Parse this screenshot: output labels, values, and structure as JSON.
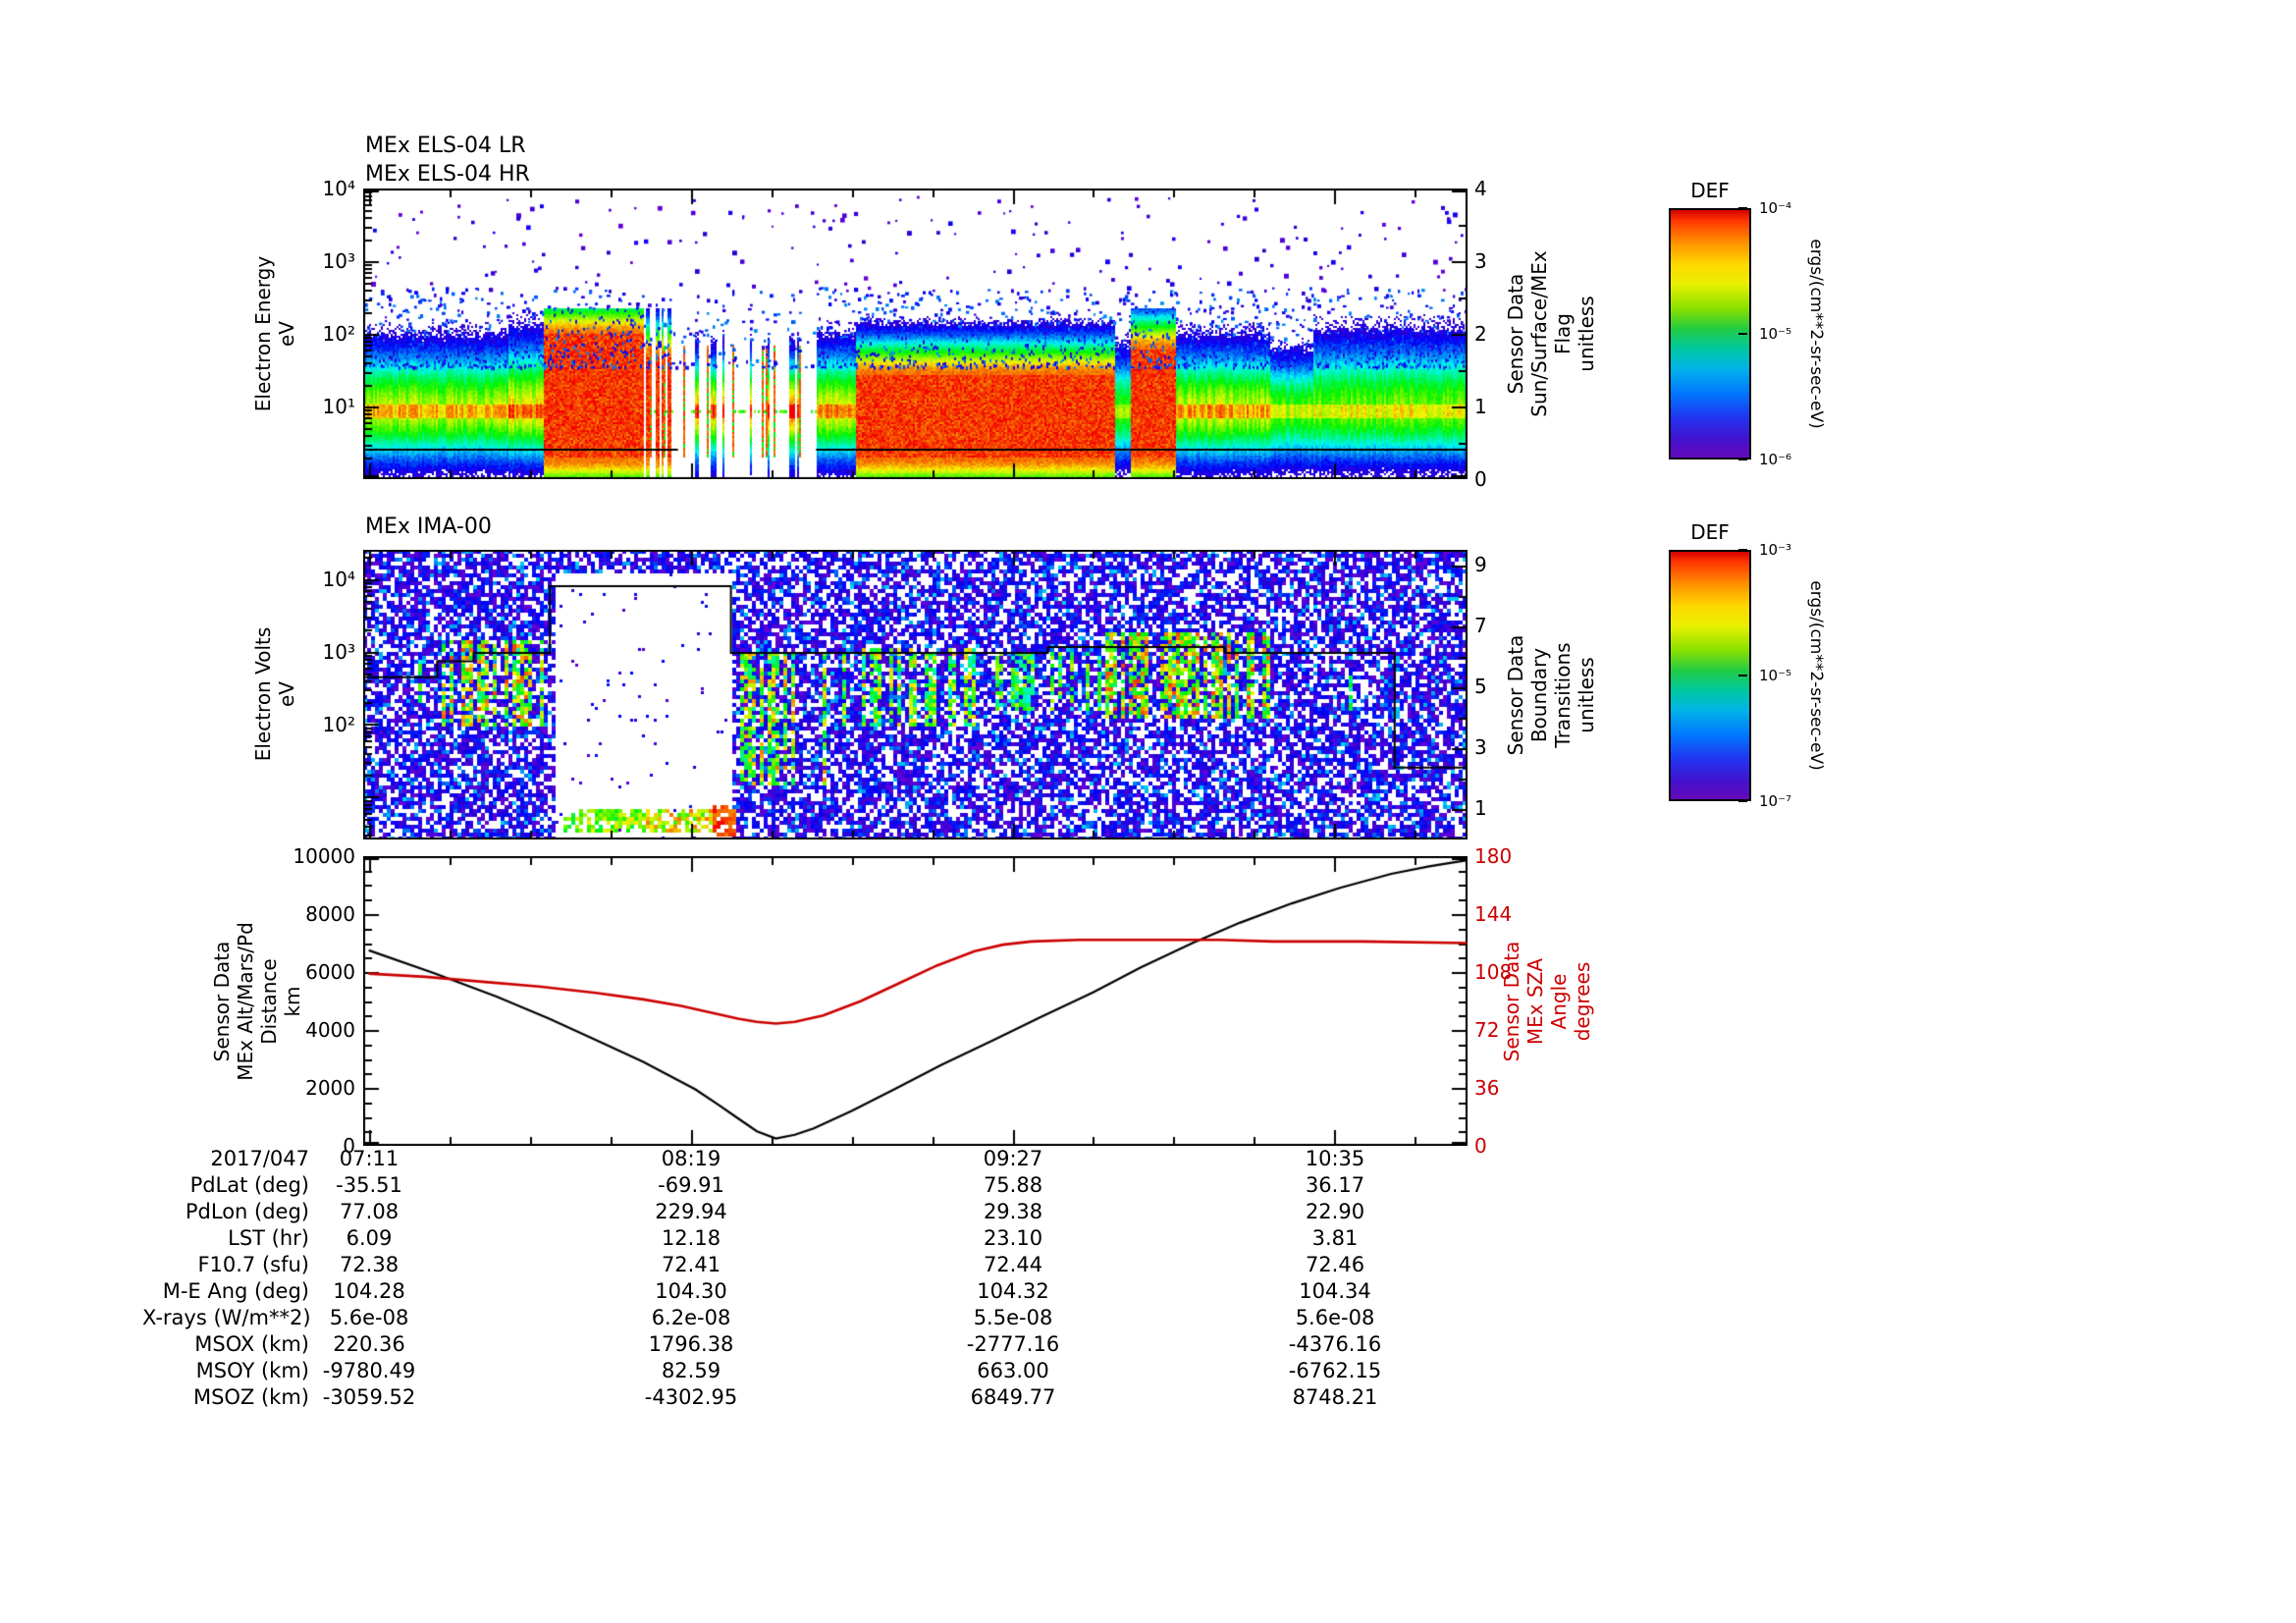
{
  "figure": {
    "date_label": "2017/047",
    "time_ticks": [
      "07:11",
      "08:19",
      "09:27",
      "10:35"
    ]
  },
  "els_panel": {
    "title_lr": "MEx ELS-04 LR",
    "title_hr": "MEx ELS-04 HR",
    "ylabel_lines": [
      "Electron Energy",
      "eV"
    ],
    "ytick_labels": [
      "10⁴",
      "10³",
      "10²",
      "10¹"
    ],
    "right_axis_label_lines": [
      "Sensor Data",
      "Sun/Surface/MEx",
      "Flag",
      "unitless"
    ],
    "right_tick_labels": [
      "4",
      "3",
      "2",
      "1",
      "0"
    ],
    "colorbar": {
      "title": "DEF",
      "tick_labels": [
        "10⁻⁴",
        "10⁻⁵",
        "10⁻⁶"
      ],
      "unit_label": "ergs/(cm**2-sr-sec-eV)"
    }
  },
  "ima_panel": {
    "title": "MEx IMA-00",
    "ylabel_lines": [
      "Electron Volts",
      "eV"
    ],
    "ytick_labels": [
      "10⁴",
      "10³",
      "10²"
    ],
    "right_axis_label_lines": [
      "Sensor Data",
      "Boundary",
      "Transitions",
      "unitless"
    ],
    "right_tick_labels": [
      "9",
      "7",
      "5",
      "3",
      "1"
    ],
    "colorbar": {
      "title": "DEF",
      "tick_labels": [
        "10⁻³",
        "10⁻⁵",
        "10⁻⁷"
      ],
      "unit_label": "ergs/(cm**2-sr-sec-eV)"
    }
  },
  "alt_panel": {
    "left_axis_label_lines": [
      "Sensor Data",
      "MEx Alt/Mars/Pd",
      "Distance",
      "km"
    ],
    "left_tick_labels": [
      "10000",
      "8000",
      "6000",
      "4000",
      "2000",
      "0"
    ],
    "right_axis_label_lines": [
      "Sensor Data",
      "MEx SZA",
      "Angle",
      "degrees"
    ],
    "right_tick_labels": [
      "180",
      "144",
      "108",
      "72",
      "36",
      "0"
    ],
    "alt_color": "#000000",
    "sza_color": "#cc0000"
  },
  "table": {
    "rows": [
      {
        "label": "PdLat (deg)",
        "values": [
          "-35.51",
          "-69.91",
          "75.88",
          "36.17"
        ]
      },
      {
        "label": "PdLon (deg)",
        "values": [
          "77.08",
          "229.94",
          "29.38",
          "22.90"
        ]
      },
      {
        "label": "LST (hr)",
        "values": [
          "6.09",
          "12.18",
          "23.10",
          "3.81"
        ]
      },
      {
        "label": "F10.7 (sfu)",
        "values": [
          "72.38",
          "72.41",
          "72.44",
          "72.46"
        ]
      },
      {
        "label": "M-E Ang (deg)",
        "values": [
          "104.28",
          "104.30",
          "104.32",
          "104.34"
        ]
      },
      {
        "label": "X-rays (W/m**2)",
        "values": [
          "5.6e-08",
          "6.2e-08",
          "5.5e-08",
          "5.6e-08"
        ]
      },
      {
        "label": "MSOX (km)",
        "values": [
          "220.36",
          "1796.38",
          "-2777.16",
          "-4376.16"
        ]
      },
      {
        "label": "MSOY (km)",
        "values": [
          "-9780.49",
          "82.59",
          "663.00",
          "-6762.15"
        ]
      },
      {
        "label": "MSOZ (km)",
        "values": [
          "-3059.52",
          "-4302.95",
          "6849.77",
          "8748.21"
        ]
      }
    ]
  },
  "chart_data": [
    {
      "type": "heatmap",
      "panel": "MEx ELS-04 LR / MEx ELS-04 HR",
      "ylabel": "Electron Energy (eV)",
      "y_log10_range": [
        0,
        4
      ],
      "x_time_ticks": [
        "07:11",
        "08:19",
        "09:27",
        "10:35"
      ],
      "z_label": "DEF ergs/(cm**2-sr-sec-eV)",
      "z_range": [
        1e-06,
        0.0001
      ],
      "right_overlay": {
        "label": "Sensor Data Sun/Surface/MEx Flag unitless",
        "range": [
          0,
          4
        ],
        "flag_value": 0.4
      },
      "band_center_log10_eV": 0.95,
      "segments": [
        {
          "t0": 0.0,
          "t1": 0.13,
          "v": 0.72,
          "sigUp": 0.5
        },
        {
          "t0": 0.13,
          "t1": 0.163,
          "v": 0.8,
          "sigUp": 0.55
        },
        {
          "t0": 0.163,
          "t1": 0.253,
          "v": 1.0,
          "sigUp": 0.5,
          "topL": 2.0
        },
        {
          "t0": 0.253,
          "t1": 0.285,
          "v": 0.9,
          "sigUp": 0.5,
          "topL": 1.7,
          "gap": 0.5
        },
        {
          "t0": 0.285,
          "t1": 0.41,
          "v": 0.85,
          "sigUp": 0.45,
          "gap": 0.72
        },
        {
          "t0": 0.41,
          "t1": 0.445,
          "v": 0.78,
          "sigUp": 0.5
        },
        {
          "t0": 0.445,
          "t1": 0.68,
          "v": 0.95,
          "sigUp": 0.45,
          "topL": 1.45
        },
        {
          "t0": 0.68,
          "t1": 0.695,
          "v": 0.62,
          "sigUp": 0.45
        },
        {
          "t0": 0.695,
          "t1": 0.735,
          "v": 1.0,
          "sigUp": 0.55,
          "topL": 1.8
        },
        {
          "t0": 0.735,
          "t1": 0.82,
          "v": 0.74,
          "sigUp": 0.5
        },
        {
          "t0": 0.82,
          "t1": 0.86,
          "v": 0.62,
          "sigUp": 0.42
        },
        {
          "t0": 0.86,
          "t1": 1.0,
          "v": 0.66,
          "sigUp": 0.55
        }
      ]
    },
    {
      "type": "heatmap",
      "panel": "MEx IMA-00",
      "ylabel": "Electron Volts (eV)",
      "y_log10_range": [
        0.41,
        4.4
      ],
      "z_label": "DEF ergs/(cm**2-sr-sec-eV)",
      "z_range": [
        1e-07,
        0.001
      ],
      "right_overlay": {
        "label": "Sensor Data Boundary Transitions unitless",
        "range": [
          0,
          9.5
        ]
      },
      "white_gap": {
        "t0": 0.172,
        "t1": 0.333,
        "l_top": 4.08,
        "l_bot": 0.45
      },
      "stripes": [
        {
          "t0": 0.012,
          "t1": 0.06,
          "l0": 2.3,
          "l1": 2.9,
          "p": 0.22,
          "v0": 0.35,
          "v1": 0.7
        },
        {
          "t0": 0.06,
          "t1": 0.17,
          "l0": 2.0,
          "l1": 3.2,
          "p": 0.5,
          "v0": 0.4,
          "v1": 0.95
        },
        {
          "t0": 0.18,
          "t1": 0.255,
          "l0": 0.55,
          "l1": 0.85,
          "p": 0.95,
          "v0": 0.5,
          "v1": 0.8
        },
        {
          "t0": 0.255,
          "t1": 0.315,
          "l0": 0.55,
          "l1": 0.85,
          "p": 0.95,
          "v0": 0.6,
          "v1": 0.9
        },
        {
          "t0": 0.315,
          "t1": 0.335,
          "l0": 0.5,
          "l1": 0.9,
          "p": 1.0,
          "v0": 0.88,
          "v1": 1.0
        },
        {
          "t0": 0.335,
          "t1": 0.43,
          "l0": 1.2,
          "l1": 3.0,
          "p": 0.5,
          "v0": 0.4,
          "v1": 0.9
        },
        {
          "t0": 0.43,
          "t1": 0.56,
          "l0": 2.0,
          "l1": 3.05,
          "p": 0.4,
          "v0": 0.35,
          "v1": 0.85
        },
        {
          "t0": 0.56,
          "t1": 0.67,
          "l0": 2.2,
          "l1": 3.0,
          "p": 0.3,
          "v0": 0.35,
          "v1": 0.75
        },
        {
          "t0": 0.67,
          "t1": 0.82,
          "l0": 2.1,
          "l1": 3.3,
          "p": 0.55,
          "v0": 0.45,
          "v1": 0.95
        },
        {
          "t0": 0.82,
          "t1": 0.9,
          "l0": 2.2,
          "l1": 2.8,
          "p": 0.12,
          "v0": 0.3,
          "v1": 0.6
        }
      ],
      "boundary_steps": [
        [
          0,
          0.44
        ],
        [
          0.067,
          0.44
        ],
        [
          0.067,
          0.385
        ],
        [
          0.1,
          0.385
        ],
        [
          0.1,
          0.356
        ],
        [
          0.169,
          0.356
        ],
        [
          0.169,
          0.125
        ],
        [
          0.333,
          0.125
        ],
        [
          0.333,
          0.356
        ],
        [
          0.62,
          0.356
        ],
        [
          0.62,
          0.336
        ],
        [
          0.78,
          0.336
        ],
        [
          0.78,
          0.356
        ],
        [
          0.934,
          0.356
        ],
        [
          0.934,
          0.752
        ],
        [
          1,
          0.752
        ]
      ]
    },
    {
      "type": "line",
      "x_axis": {
        "start": "07:11",
        "tick_labels": [
          "07:11",
          "08:19",
          "09:27",
          "10:35"
        ],
        "tick_minutes": [
          0,
          68,
          136,
          204
        ],
        "span_minutes": 232,
        "date": "2017/047"
      },
      "series": [
        {
          "name": "MEx Alt/Mars/Pd Distance",
          "units": "km",
          "axis": "left",
          "ylim": [
            0,
            10000
          ],
          "color": "#000000",
          "x_minutes": [
            0,
            14,
            27,
            38,
            48,
            58,
            69,
            74,
            78,
            82,
            86,
            90,
            94,
            102,
            111,
            121,
            132,
            142,
            153,
            163,
            174,
            184,
            195,
            205,
            216,
            224,
            232
          ],
          "values": [
            6750,
            5950,
            5150,
            4400,
            3650,
            2900,
            1950,
            1400,
            950,
            500,
            250,
            380,
            600,
            1200,
            1950,
            2800,
            3650,
            4450,
            5300,
            6150,
            7000,
            7700,
            8370,
            8900,
            9390,
            9650,
            9860
          ]
        },
        {
          "name": "MEx SZA Angle",
          "units": "degrees",
          "axis": "right",
          "ylim": [
            0,
            180
          ],
          "color": "#cc0000",
          "x_minutes": [
            0,
            12,
            24,
            36,
            48,
            58,
            66,
            72,
            78,
            82,
            86,
            90,
            96,
            104,
            112,
            120,
            128,
            134,
            140,
            150,
            165,
            180,
            191,
            210,
            232
          ],
          "values": [
            107,
            105,
            102,
            99,
            95,
            91,
            87,
            83,
            79,
            77,
            76,
            77,
            81,
            90,
            101,
            112,
            121,
            125,
            127,
            128,
            128,
            128,
            127,
            127,
            126
          ]
        }
      ]
    }
  ]
}
